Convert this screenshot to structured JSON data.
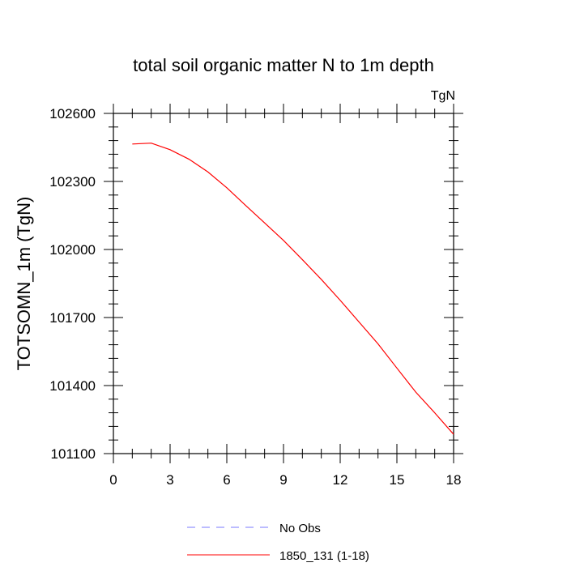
{
  "chart_data": {
    "type": "line",
    "title": "total soil organic matter N to 1m depth",
    "units": "TgN",
    "ylabel": "TOTSOMN_1m  (TgN)",
    "xlabel": "",
    "xlim": [
      0,
      18
    ],
    "ylim": [
      101100,
      102600
    ],
    "xticks": [
      0,
      3,
      6,
      9,
      12,
      15,
      18
    ],
    "xtick_labels": [
      "0",
      "3",
      "6",
      "9",
      "12",
      "15",
      "18"
    ],
    "yticks": [
      101100,
      101400,
      101700,
      102000,
      102300,
      102600
    ],
    "ytick_labels": [
      "101100",
      "101400",
      "101700",
      "102000",
      "102300",
      "102600"
    ],
    "grid": false,
    "legend_position": "bottom",
    "series": [
      {
        "name": "No Obs",
        "color": "#7a7aff",
        "dash": "dashed",
        "x": [],
        "values": []
      },
      {
        "name": "1850_131 (1-18)",
        "color": "#ff0000",
        "dash": "solid",
        "x": [
          1,
          2,
          3,
          4,
          5,
          6,
          7,
          8,
          9,
          10,
          11,
          12,
          13,
          14,
          15,
          16,
          17,
          18
        ],
        "values": [
          102465,
          102469,
          102440,
          102398,
          102342,
          102272,
          102194,
          102117,
          102040,
          101955,
          101868,
          101776,
          101680,
          101584,
          101477,
          101371,
          101280,
          101185
        ]
      }
    ]
  }
}
